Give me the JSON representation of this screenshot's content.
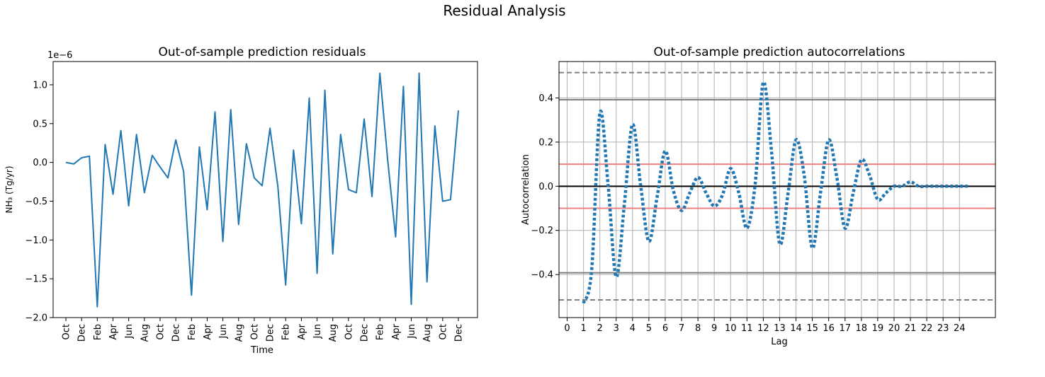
{
  "figure": {
    "suptitle": "Residual Analysis"
  },
  "chart_data": [
    {
      "type": "line",
      "title": "Out-of-sample prediction residuals",
      "xlabel": "Time",
      "ylabel": "NH₃ (Tg/yr)",
      "y_offset_text": "1e−6",
      "y_scale_factor": 1e-06,
      "ylim": [
        -2.0,
        1.3
      ],
      "yticks": [
        -2.0,
        -1.5,
        -1.0,
        -0.5,
        0.0,
        0.5,
        1.0
      ],
      "ytick_labels": [
        "−2.0",
        "−1.5",
        "−1.0",
        "−0.5",
        "0.0",
        "0.5",
        "1.0"
      ],
      "xtick_labels": [
        "Oct",
        "Dec",
        "Feb",
        "Apr",
        "Jun",
        "Aug",
        "Oct",
        "Dec",
        "Feb",
        "Apr",
        "Jun",
        "Aug",
        "Oct",
        "Dec",
        "Feb",
        "Apr",
        "Jun",
        "Aug",
        "Oct",
        "Dec",
        "Feb",
        "Apr",
        "Jun",
        "Aug",
        "Oct",
        "Dec"
      ],
      "line_color": "#1f77b4",
      "grid": false,
      "series": [
        {
          "values": [
            0.0,
            -0.02,
            0.06,
            0.08,
            -1.86,
            0.23,
            -0.41,
            0.41,
            -0.56,
            0.36,
            -0.39,
            0.09,
            -0.06,
            -0.2,
            0.29,
            -0.12,
            -1.71,
            0.2,
            -0.61,
            0.65,
            -1.02,
            0.68,
            -0.8,
            0.24,
            -0.2,
            -0.3,
            0.44,
            -0.31,
            -1.58,
            0.16,
            -0.79,
            0.83,
            -1.43,
            0.93,
            -1.18,
            0.36,
            -0.35,
            -0.39,
            0.56,
            -0.44,
            1.15,
            0.02,
            -0.96,
            0.98,
            -1.83,
            1.15,
            -1.54,
            0.47,
            -0.5,
            -0.48,
            0.67
          ]
        }
      ]
    },
    {
      "type": "line",
      "title": "Out-of-sample prediction autocorrelations",
      "xlabel": "Lag",
      "ylabel": "Autocorrelation",
      "ylim": [
        -0.595,
        0.565
      ],
      "xlim": [
        -0.5,
        26.2
      ],
      "yticks": [
        -0.4,
        -0.2,
        0.0,
        0.2,
        0.4
      ],
      "ytick_labels": [
        "−0.4",
        "−0.2",
        "0.0",
        "0.2",
        "0.4"
      ],
      "xticks": [
        0,
        1,
        2,
        3,
        4,
        5,
        6,
        7,
        8,
        9,
        10,
        11,
        12,
        13,
        14,
        15,
        16,
        17,
        18,
        19,
        20,
        21,
        22,
        23,
        24
      ],
      "grid": true,
      "series_color": "#1f77b4",
      "reference_lines": [
        {
          "y": 0.0,
          "color": "#000000",
          "style": "solid"
        },
        {
          "y": 0.1,
          "color": "#f08080",
          "style": "solid"
        },
        {
          "y": -0.1,
          "color": "#f08080",
          "style": "solid"
        },
        {
          "y": 0.392,
          "color": "#808080",
          "style": "solid"
        },
        {
          "y": -0.392,
          "color": "#808080",
          "style": "solid"
        },
        {
          "y": 0.515,
          "color": "#808080",
          "style": "dashed"
        },
        {
          "y": -0.515,
          "color": "#808080",
          "style": "dashed"
        }
      ],
      "series": [
        {
          "x": [
            1,
            1.5,
            2,
            2.5,
            3,
            3.5,
            4,
            4.5,
            5,
            5.5,
            6,
            6.5,
            7,
            7.5,
            8,
            8.5,
            9,
            9.5,
            10,
            10.5,
            11,
            11.5,
            12,
            12.5,
            13,
            13.5,
            14,
            14.5,
            15,
            15.5,
            16,
            16.5,
            17,
            17.5,
            18,
            18.5,
            19,
            19.5,
            20,
            20.5,
            21,
            21.5,
            22,
            22.5,
            23,
            23.5,
            24,
            24.5
          ],
          "y": [
            -0.53,
            -0.38,
            0.33,
            0.01,
            -0.41,
            -0.08,
            0.28,
            0.0,
            -0.25,
            -0.05,
            0.16,
            -0.02,
            -0.11,
            -0.03,
            0.04,
            -0.03,
            -0.09,
            -0.04,
            0.08,
            -0.03,
            -0.19,
            0.01,
            0.47,
            0.16,
            -0.26,
            -0.04,
            0.21,
            0.05,
            -0.28,
            -0.03,
            0.21,
            0.04,
            -0.19,
            -0.03,
            0.12,
            0.05,
            -0.06,
            -0.03,
            0.0,
            0.0,
            0.02,
            0.0,
            0.0,
            0.0,
            0.0,
            0.0,
            0.0,
            0.0
          ]
        }
      ]
    }
  ]
}
